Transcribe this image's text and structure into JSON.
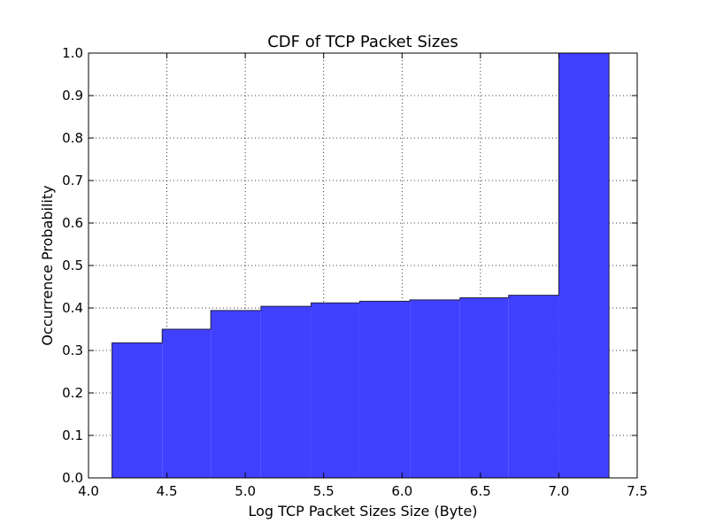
{
  "chart_data": {
    "type": "area",
    "title": "CDF of TCP Packet Sizes",
    "xlabel": "Log TCP Packet Sizes Size (Byte)",
    "ylabel": "Occurrence Probability",
    "xlim": [
      4.0,
      7.5
    ],
    "ylim": [
      0.0,
      1.0
    ],
    "grid": true,
    "x_ticks": [
      4.0,
      4.5,
      5.0,
      5.5,
      6.0,
      6.5,
      7.0,
      7.5
    ],
    "y_ticks": [
      0.0,
      0.1,
      0.2,
      0.3,
      0.4,
      0.5,
      0.6,
      0.7,
      0.8,
      0.9,
      1.0
    ],
    "x_tick_labels": [
      "4.0",
      "4.5",
      "5.0",
      "5.5",
      "6.0",
      "6.5",
      "7.0",
      "7.5"
    ],
    "y_tick_labels": [
      "0.0",
      "0.1",
      "0.2",
      "0.3",
      "0.4",
      "0.5",
      "0.6",
      "0.7",
      "0.8",
      "0.9",
      "1.0"
    ],
    "bins": [
      {
        "x0": 4.15,
        "x1": 4.47,
        "y": 0.318
      },
      {
        "x0": 4.47,
        "x1": 4.78,
        "y": 0.35
      },
      {
        "x0": 4.78,
        "x1": 5.1,
        "y": 0.394
      },
      {
        "x0": 5.1,
        "x1": 5.42,
        "y": 0.404
      },
      {
        "x0": 5.42,
        "x1": 5.73,
        "y": 0.412
      },
      {
        "x0": 5.73,
        "x1": 6.05,
        "y": 0.416
      },
      {
        "x0": 6.05,
        "x1": 6.37,
        "y": 0.419
      },
      {
        "x0": 6.37,
        "x1": 6.68,
        "y": 0.424
      },
      {
        "x0": 6.68,
        "x1": 7.0,
        "y": 0.43
      },
      {
        "x0": 7.0,
        "x1": 7.32,
        "y": 1.0
      }
    ],
    "fill_color": "#4040ff",
    "edge_color": "#202040"
  }
}
